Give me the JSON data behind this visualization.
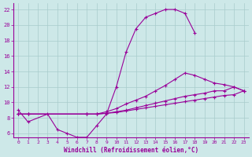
{
  "xlabel": "Windchill (Refroidissement éolien,°C)",
  "xlim": [
    -0.5,
    23.5
  ],
  "ylim": [
    5.5,
    22.8
  ],
  "yticks": [
    6,
    8,
    10,
    12,
    14,
    16,
    18,
    20,
    22
  ],
  "xticks": [
    0,
    1,
    2,
    3,
    4,
    5,
    6,
    7,
    8,
    9,
    10,
    11,
    12,
    13,
    14,
    15,
    16,
    17,
    18,
    19,
    20,
    21,
    22,
    23
  ],
  "bg_color": "#cde8e8",
  "grid_color": "#a8cccc",
  "line_color": "#990099",
  "line1_x": [
    0,
    1,
    3,
    4,
    5,
    6,
    7,
    8,
    9,
    10,
    11,
    12,
    13,
    14,
    15,
    16,
    17,
    18
  ],
  "line1_y": [
    9.0,
    7.5,
    8.5,
    6.5,
    6.0,
    5.5,
    5.5,
    7.0,
    8.5,
    12.0,
    16.5,
    19.5,
    21.0,
    21.5,
    22.0,
    22.0,
    21.5,
    19.0
  ],
  "line2_x": [
    0,
    1,
    7,
    8,
    9,
    10,
    11,
    12,
    13,
    14,
    15,
    16,
    17,
    18,
    19,
    20,
    21,
    22,
    23
  ],
  "line2_y": [
    8.5,
    8.5,
    8.5,
    8.5,
    8.8,
    9.2,
    9.8,
    10.3,
    10.8,
    11.5,
    12.2,
    13.0,
    13.8,
    13.5,
    13.0,
    12.5,
    12.3,
    12.0,
    11.5
  ],
  "line3_x": [
    0,
    1,
    7,
    8,
    9,
    10,
    11,
    12,
    13,
    14,
    15,
    16,
    17,
    18,
    19,
    20,
    21,
    22,
    23
  ],
  "line3_y": [
    8.5,
    8.5,
    8.5,
    8.5,
    8.6,
    8.8,
    9.0,
    9.3,
    9.6,
    9.9,
    10.2,
    10.5,
    10.8,
    11.0,
    11.2,
    11.5,
    11.5,
    12.0,
    11.5
  ],
  "line4_x": [
    0,
    1,
    7,
    8,
    9,
    10,
    11,
    12,
    13,
    14,
    15,
    16,
    17,
    18,
    19,
    20,
    21,
    22,
    23
  ],
  "line4_y": [
    8.5,
    8.5,
    8.5,
    8.5,
    8.6,
    8.7,
    8.9,
    9.1,
    9.3,
    9.5,
    9.7,
    9.9,
    10.1,
    10.3,
    10.5,
    10.7,
    10.9,
    11.0,
    11.5
  ]
}
